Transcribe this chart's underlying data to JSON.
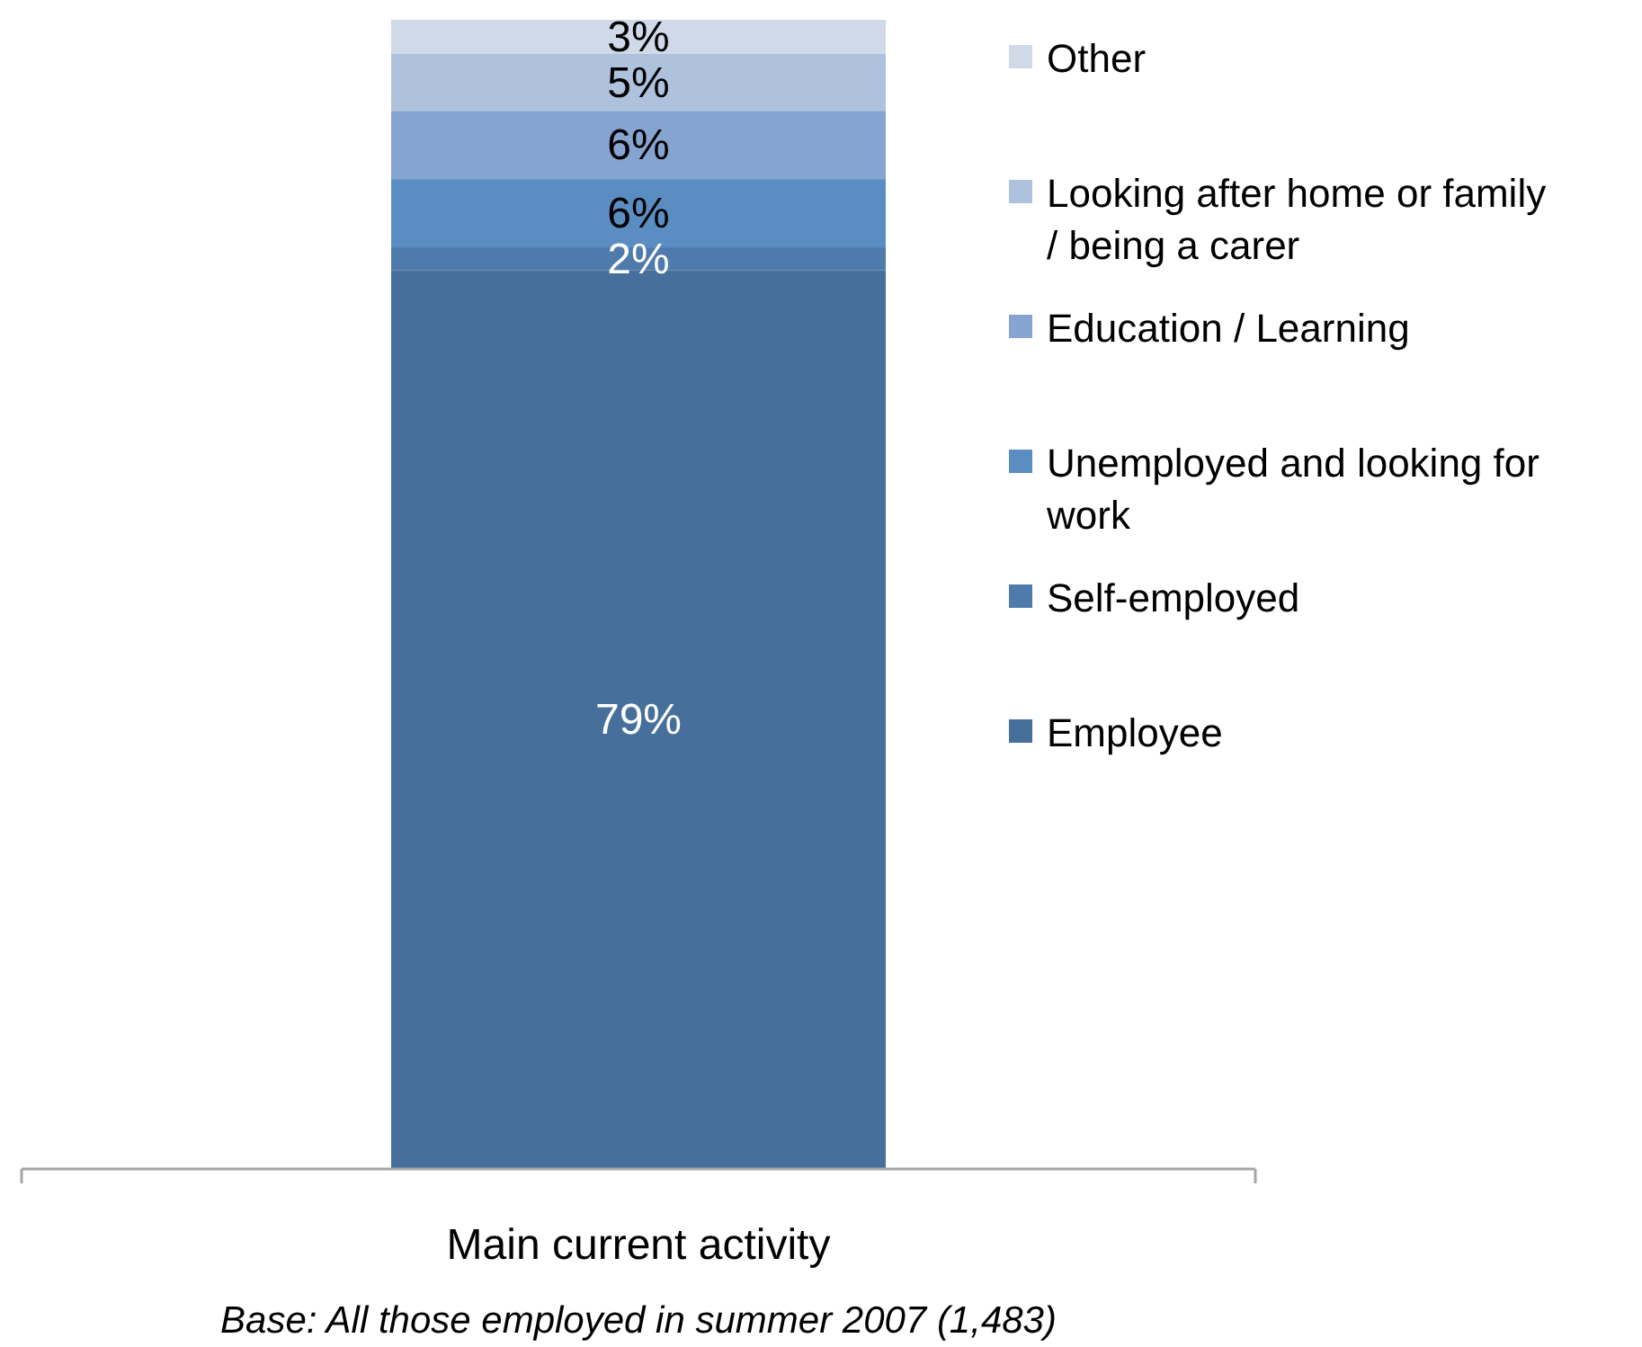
{
  "chart_data": {
    "type": "bar",
    "stacked": true,
    "categories": [
      null
    ],
    "xlabel": "Main current activity",
    "annotations": [
      "Base: All those employed in summer 2007 (1,483)"
    ],
    "legend": "right",
    "series": [
      {
        "name": "Employee",
        "color": "#46709b",
        "values": [
          79
        ],
        "value_labels": [
          "79%"
        ]
      },
      {
        "name": "Self-employed",
        "color": "#4e7aac",
        "values": [
          2
        ],
        "value_labels": [
          "2%"
        ]
      },
      {
        "name": "Unemployed and looking for work",
        "color": "#5a8ec2",
        "values": [
          6
        ],
        "value_labels": [
          "6%"
        ]
      },
      {
        "name": "Education / Learning",
        "color": "#85a4cf",
        "values": [
          6
        ],
        "value_labels": [
          "6%"
        ]
      },
      {
        "name": "Looking after home or family / being a carer",
        "color": "#aec2dd",
        "values": [
          5
        ],
        "value_labels": [
          "5%"
        ]
      },
      {
        "name": "Other",
        "color": "#d0d9e7",
        "values": [
          3
        ],
        "value_labels": [
          "3%"
        ]
      }
    ]
  }
}
